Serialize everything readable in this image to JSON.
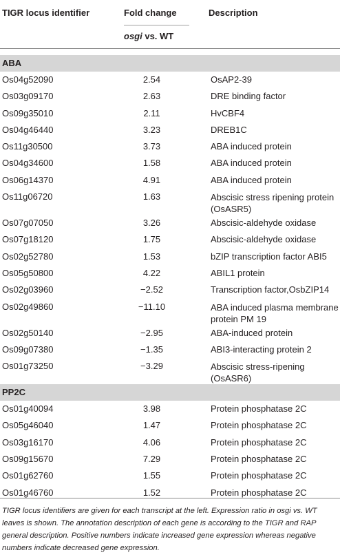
{
  "headers": {
    "locus": "TIGR locus identifier",
    "fold": "Fold change",
    "fold_sub_italic": "osgi",
    "fold_sub_rest": " vs. WT",
    "desc": "Description"
  },
  "sections": [
    {
      "title": "ABA",
      "rows": [
        {
          "id": "Os04g52090",
          "fc": "2.54",
          "desc": "OsAP2-39"
        },
        {
          "id": "Os03g09170",
          "fc": "2.63",
          "desc": "DRE binding factor"
        },
        {
          "id": "Os09g35010",
          "fc": "2.11",
          "desc": "HvCBF4"
        },
        {
          "id": "Os04g46440",
          "fc": "3.23",
          "desc": "DREB1C"
        },
        {
          "id": "Os11g30500",
          "fc": "3.73",
          "desc": "ABA induced protein"
        },
        {
          "id": "Os04g34600",
          "fc": "1.58",
          "desc": "ABA induced protein"
        },
        {
          "id": "Os06g14370",
          "fc": "4.91",
          "desc": "ABA induced protein"
        },
        {
          "id": "Os11g06720",
          "fc": "1.63",
          "desc": "Abscisic stress ripening protein (OsASR5)"
        },
        {
          "id": "Os07g07050",
          "fc": "3.26",
          "desc": "Abscisic-aldehyde oxidase"
        },
        {
          "id": "Os07g18120",
          "fc": "1.75",
          "desc": "Abscisic-aldehyde oxidase"
        },
        {
          "id": "Os02g52780",
          "fc": "1.53",
          "desc": "bZIP transcription factor ABI5"
        },
        {
          "id": "Os05g50800",
          "fc": "4.22",
          "desc": "ABIL1 protein"
        },
        {
          "id": "Os02g03960",
          "fc": "−2.52",
          "desc": "Transcription factor,OsbZIP14"
        },
        {
          "id": "Os02g49860",
          "fc": "−11.10",
          "desc": "ABA induced plasma membrane protein PM 19"
        },
        {
          "id": "Os02g50140",
          "fc": "−2.95",
          "desc": "ABA-induced protein"
        },
        {
          "id": "Os09g07380",
          "fc": "−1.35",
          "desc": "ABI3-interacting protein 2"
        },
        {
          "id": "Os01g73250",
          "fc": "−3.29",
          "desc": "Abscisic stress-ripening (OsASR6)"
        }
      ]
    },
    {
      "title": "PP2C",
      "rows": [
        {
          "id": "Os01g40094",
          "fc": "3.98",
          "desc": "Protein phosphatase 2C"
        },
        {
          "id": "Os05g46040",
          "fc": "1.47",
          "desc": "Protein phosphatase 2C"
        },
        {
          "id": "Os03g16170",
          "fc": "4.06",
          "desc": "Protein phosphatase 2C"
        },
        {
          "id": "Os09g15670",
          "fc": "7.29",
          "desc": "Protein phosphatase 2C"
        },
        {
          "id": "Os01g62760",
          "fc": "1.55",
          "desc": "Protein phosphatase 2C"
        },
        {
          "id": "Os01g46760",
          "fc": "1.52",
          "desc": "Protein phosphatase 2C"
        }
      ]
    }
  ],
  "footnote": "TIGR locus identifiers are given for each transcript at the left. Expression ratio in osgi vs. WT leaves is shown. The annotation description of each gene is according to the TIGR and RAP general description. Positive numbers indicate increased gene expression whereas negative numbers indicate decreased gene expression."
}
